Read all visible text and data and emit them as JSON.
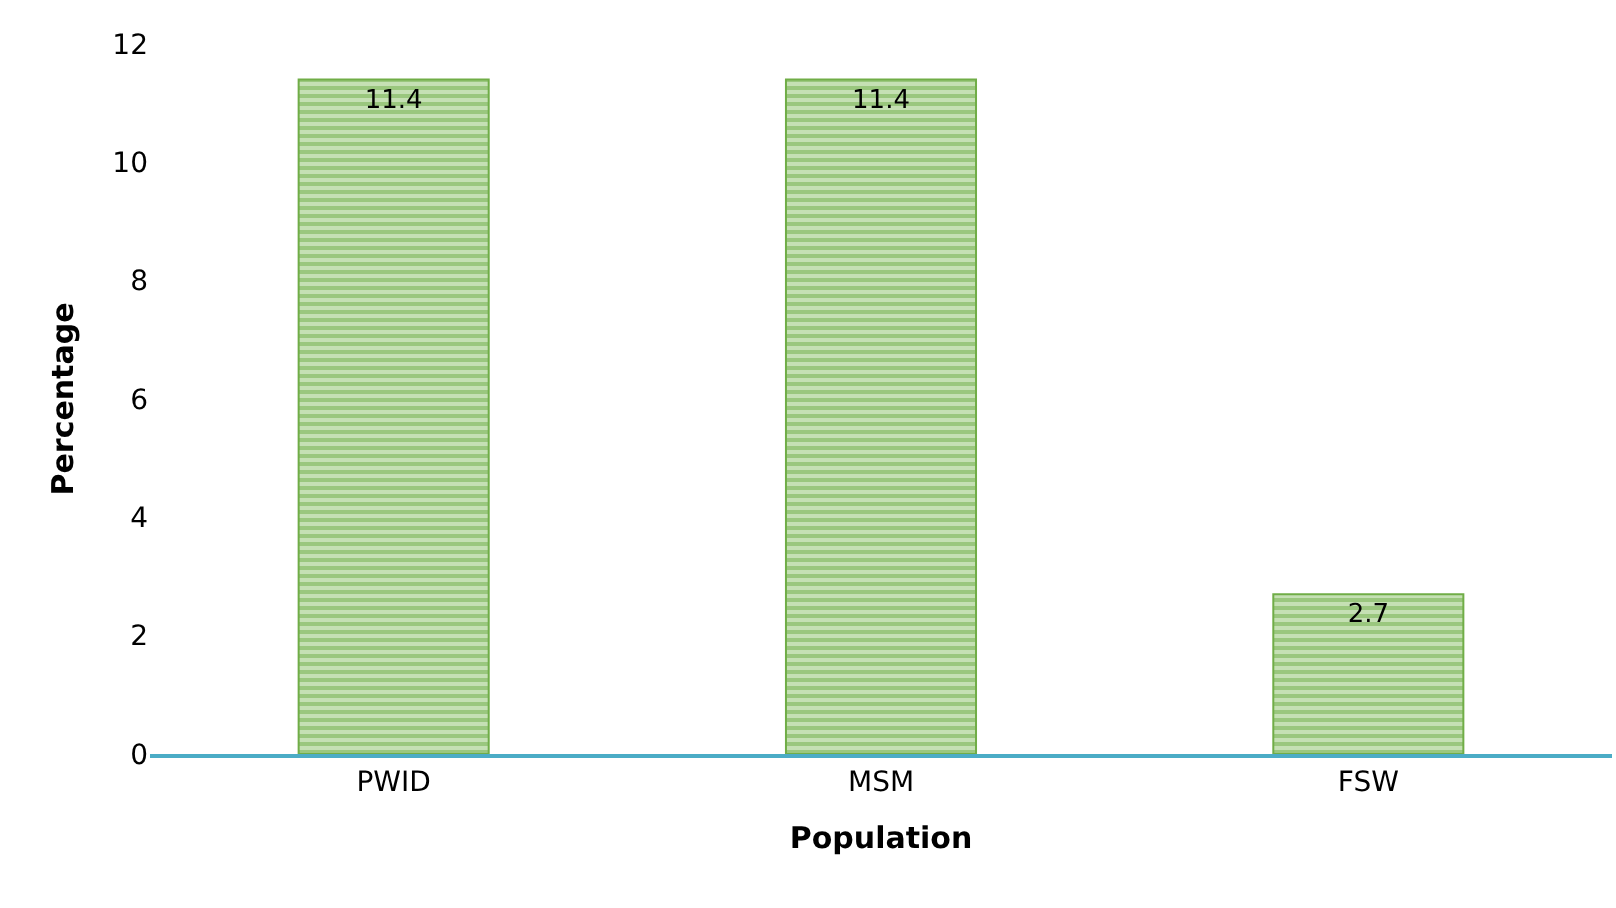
{
  "chart_data": {
    "type": "bar",
    "xlabel": "Population",
    "ylabel": "Percentage",
    "categories": [
      "PWID",
      "MSM",
      "FSW"
    ],
    "values": [
      11.4,
      11.4,
      2.7
    ],
    "color": "#70ad47",
    "ylim": [
      0,
      12
    ],
    "yticks": [
      0,
      2,
      4,
      6,
      8,
      10,
      12
    ],
    "data_labels": true
  }
}
